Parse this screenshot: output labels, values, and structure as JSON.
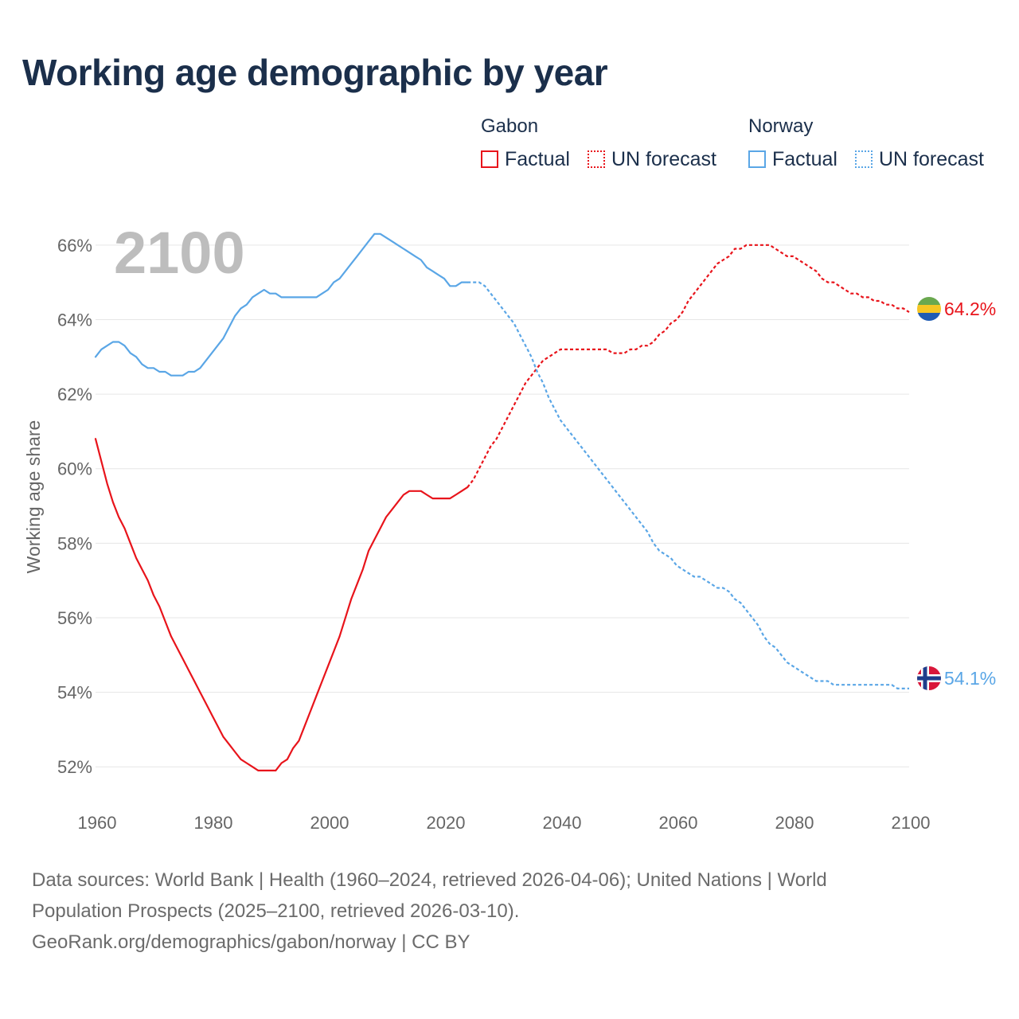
{
  "title": "Working age demographic by year",
  "legend": {
    "groups": [
      {
        "name": "Gabon",
        "color": "#e8141b",
        "factual_label": "Factual",
        "forecast_label": "UN forecast"
      },
      {
        "name": "Norway",
        "color": "#5aa6e6",
        "factual_label": "Factual",
        "forecast_label": "UN forecast"
      }
    ]
  },
  "footer": {
    "line1": "Data sources: World Bank | Health (1960–2024, retrieved 2026-04-06); United Nations | World",
    "line2": "Population Prospects (2025–2100, retrieved 2026-03-10).",
    "line3": "GeoRank.org/demographics/gabon/norway | CC BY"
  },
  "chart_data": {
    "type": "line",
    "title": "Working age demographic by year",
    "ylabel": "Working age share",
    "xlabel": "",
    "current_year_label": "2100",
    "xlim": [
      1960,
      2100
    ],
    "ylim": [
      51,
      67
    ],
    "x_ticks": [
      "1960",
      "1980",
      "2000",
      "2020",
      "2040",
      "2060",
      "2080",
      "2100"
    ],
    "y_ticks": [
      "52%",
      "54%",
      "56%",
      "58%",
      "60%",
      "62%",
      "64%",
      "66%"
    ],
    "y_tick_values": [
      52,
      54,
      56,
      58,
      60,
      62,
      64,
      66
    ],
    "grid": true,
    "factual_end_year": 2024,
    "series": [
      {
        "name": "Gabon",
        "color": "#e8141b",
        "end_label": "64.2%",
        "end_icon": "gabon-flag-icon",
        "x": [
          1960,
          1961,
          1962,
          1963,
          1964,
          1965,
          1966,
          1967,
          1968,
          1969,
          1970,
          1971,
          1972,
          1973,
          1974,
          1975,
          1976,
          1977,
          1978,
          1979,
          1980,
          1981,
          1982,
          1983,
          1984,
          1985,
          1986,
          1987,
          1988,
          1989,
          1990,
          1991,
          1992,
          1993,
          1994,
          1995,
          1996,
          1997,
          1998,
          1999,
          2000,
          2001,
          2002,
          2003,
          2004,
          2005,
          2006,
          2007,
          2008,
          2009,
          2010,
          2011,
          2012,
          2013,
          2014,
          2015,
          2016,
          2017,
          2018,
          2019,
          2020,
          2021,
          2022,
          2023,
          2024,
          2025,
          2026,
          2027,
          2028,
          2029,
          2030,
          2031,
          2032,
          2033,
          2034,
          2035,
          2036,
          2037,
          2038,
          2039,
          2040,
          2041,
          2042,
          2043,
          2044,
          2045,
          2046,
          2047,
          2048,
          2049,
          2050,
          2051,
          2052,
          2053,
          2054,
          2055,
          2056,
          2057,
          2058,
          2059,
          2060,
          2061,
          2062,
          2063,
          2064,
          2065,
          2066,
          2067,
          2068,
          2069,
          2070,
          2071,
          2072,
          2073,
          2074,
          2075,
          2076,
          2077,
          2078,
          2079,
          2080,
          2081,
          2082,
          2083,
          2084,
          2085,
          2086,
          2087,
          2088,
          2089,
          2090,
          2091,
          2092,
          2093,
          2094,
          2095,
          2096,
          2097,
          2098,
          2099,
          2100
        ],
        "values": [
          60.8,
          60.2,
          59.6,
          59.1,
          58.7,
          58.4,
          58.0,
          57.6,
          57.3,
          57.0,
          56.6,
          56.3,
          55.9,
          55.5,
          55.2,
          54.9,
          54.6,
          54.3,
          54.0,
          53.7,
          53.4,
          53.1,
          52.8,
          52.6,
          52.4,
          52.2,
          52.1,
          52.0,
          51.9,
          51.9,
          51.9,
          51.9,
          52.1,
          52.2,
          52.5,
          52.7,
          53.1,
          53.5,
          53.9,
          54.3,
          54.7,
          55.1,
          55.5,
          56.0,
          56.5,
          56.9,
          57.3,
          57.8,
          58.1,
          58.4,
          58.7,
          58.9,
          59.1,
          59.3,
          59.4,
          59.4,
          59.4,
          59.3,
          59.2,
          59.2,
          59.2,
          59.2,
          59.3,
          59.4,
          59.5,
          59.7,
          60.0,
          60.3,
          60.6,
          60.8,
          61.1,
          61.4,
          61.7,
          62.0,
          62.3,
          62.5,
          62.7,
          62.9,
          63.0,
          63.1,
          63.2,
          63.2,
          63.2,
          63.2,
          63.2,
          63.2,
          63.2,
          63.2,
          63.2,
          63.1,
          63.1,
          63.1,
          63.2,
          63.2,
          63.3,
          63.3,
          63.4,
          63.6,
          63.7,
          63.9,
          64.0,
          64.2,
          64.5,
          64.7,
          64.9,
          65.1,
          65.3,
          65.5,
          65.6,
          65.7,
          65.9,
          65.9,
          66.0,
          66.0,
          66.0,
          66.0,
          66.0,
          65.9,
          65.8,
          65.7,
          65.7,
          65.6,
          65.5,
          65.4,
          65.3,
          65.1,
          65.0,
          65.0,
          64.9,
          64.8,
          64.7,
          64.7,
          64.6,
          64.6,
          64.5,
          64.5,
          64.4,
          64.4,
          64.3,
          64.3,
          64.2
        ]
      },
      {
        "name": "Norway",
        "color": "#5aa6e6",
        "end_label": "54.1%",
        "end_icon": "norway-flag-icon",
        "x": [
          1960,
          1961,
          1962,
          1963,
          1964,
          1965,
          1966,
          1967,
          1968,
          1969,
          1970,
          1971,
          1972,
          1973,
          1974,
          1975,
          1976,
          1977,
          1978,
          1979,
          1980,
          1981,
          1982,
          1983,
          1984,
          1985,
          1986,
          1987,
          1988,
          1989,
          1990,
          1991,
          1992,
          1993,
          1994,
          1995,
          1996,
          1997,
          1998,
          1999,
          2000,
          2001,
          2002,
          2003,
          2004,
          2005,
          2006,
          2007,
          2008,
          2009,
          2010,
          2011,
          2012,
          2013,
          2014,
          2015,
          2016,
          2017,
          2018,
          2019,
          2020,
          2021,
          2022,
          2023,
          2024,
          2025,
          2026,
          2027,
          2028,
          2029,
          2030,
          2031,
          2032,
          2033,
          2034,
          2035,
          2036,
          2037,
          2038,
          2039,
          2040,
          2041,
          2042,
          2043,
          2044,
          2045,
          2046,
          2047,
          2048,
          2049,
          2050,
          2051,
          2052,
          2053,
          2054,
          2055,
          2056,
          2057,
          2058,
          2059,
          2060,
          2061,
          2062,
          2063,
          2064,
          2065,
          2066,
          2067,
          2068,
          2069,
          2070,
          2071,
          2072,
          2073,
          2074,
          2075,
          2076,
          2077,
          2078,
          2079,
          2080,
          2081,
          2082,
          2083,
          2084,
          2085,
          2086,
          2087,
          2088,
          2089,
          2090,
          2091,
          2092,
          2093,
          2094,
          2095,
          2096,
          2097,
          2098,
          2099,
          2100
        ],
        "values": [
          63.0,
          63.2,
          63.3,
          63.4,
          63.4,
          63.3,
          63.1,
          63.0,
          62.8,
          62.7,
          62.7,
          62.6,
          62.6,
          62.5,
          62.5,
          62.5,
          62.6,
          62.6,
          62.7,
          62.9,
          63.1,
          63.3,
          63.5,
          63.8,
          64.1,
          64.3,
          64.4,
          64.6,
          64.7,
          64.8,
          64.7,
          64.7,
          64.6,
          64.6,
          64.6,
          64.6,
          64.6,
          64.6,
          64.6,
          64.7,
          64.8,
          65.0,
          65.1,
          65.3,
          65.5,
          65.7,
          65.9,
          66.1,
          66.3,
          66.3,
          66.2,
          66.1,
          66.0,
          65.9,
          65.8,
          65.7,
          65.6,
          65.4,
          65.3,
          65.2,
          65.1,
          64.9,
          64.9,
          65.0,
          65.0,
          65.0,
          65.0,
          64.9,
          64.7,
          64.5,
          64.3,
          64.1,
          63.9,
          63.6,
          63.3,
          63.0,
          62.6,
          62.3,
          61.9,
          61.6,
          61.3,
          61.1,
          60.9,
          60.7,
          60.5,
          60.3,
          60.1,
          59.9,
          59.7,
          59.5,
          59.3,
          59.1,
          58.9,
          58.7,
          58.5,
          58.3,
          58.0,
          57.8,
          57.7,
          57.6,
          57.4,
          57.3,
          57.2,
          57.1,
          57.1,
          57.0,
          56.9,
          56.8,
          56.8,
          56.7,
          56.5,
          56.4,
          56.2,
          56.0,
          55.8,
          55.5,
          55.3,
          55.2,
          55.0,
          54.8,
          54.7,
          54.6,
          54.5,
          54.4,
          54.3,
          54.3,
          54.3,
          54.2,
          54.2,
          54.2,
          54.2,
          54.2,
          54.2,
          54.2,
          54.2,
          54.2,
          54.2,
          54.2,
          54.1,
          54.1,
          54.1
        ]
      }
    ]
  }
}
